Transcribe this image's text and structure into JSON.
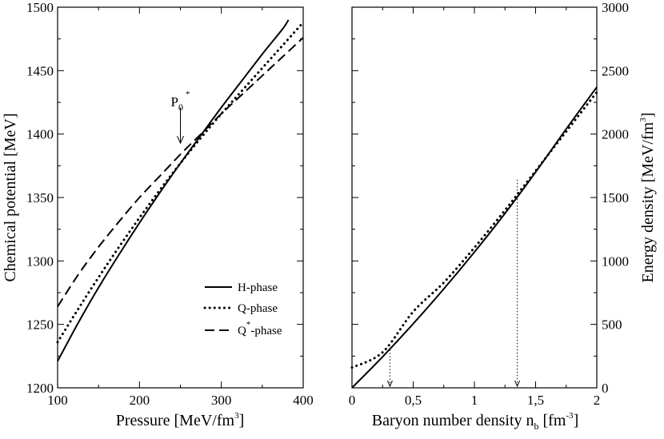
{
  "chart_data": [
    {
      "type": "line",
      "title": "",
      "xlabel_main": "Pressure [MeV/fm",
      "xlabel_sup": "3",
      "xlabel_end": "]",
      "ylabel": "Chemical potential [MeV]",
      "xlim": [
        100,
        400
      ],
      "ylim": [
        1200,
        1500
      ],
      "xticks": [
        100,
        200,
        300,
        400
      ],
      "yticks": [
        1200,
        1250,
        1300,
        1350,
        1400,
        1450,
        1500
      ],
      "xtick_labels": [
        "100",
        "200",
        "300",
        "400"
      ],
      "ytick_labels": [
        "1200",
        "1250",
        "1300",
        "1350",
        "1400",
        "1450",
        "1500"
      ],
      "legend_position": "bottom-right",
      "series": [
        {
          "name": "H-phase",
          "legend_label": "H-phase",
          "style": "solid",
          "points": [
            [
              100,
              1221
            ],
            [
              125,
              1251
            ],
            [
              150,
              1279
            ],
            [
              175,
              1305
            ],
            [
              200,
              1330
            ],
            [
              225,
              1354
            ],
            [
              250,
              1377
            ],
            [
              275,
              1399
            ],
            [
              300,
              1421
            ],
            [
              325,
              1442
            ],
            [
              350,
              1463
            ],
            [
              375,
              1483
            ],
            [
              382,
              1490
            ]
          ]
        },
        {
          "name": "Q-phase",
          "legend_label": "Q-phase",
          "style": "dotted",
          "points": [
            [
              100,
              1236
            ],
            [
              125,
              1262
            ],
            [
              150,
              1287
            ],
            [
              175,
              1311
            ],
            [
              200,
              1334
            ],
            [
              225,
              1356
            ],
            [
              250,
              1377
            ],
            [
              275,
              1397
            ],
            [
              300,
              1416
            ],
            [
              325,
              1434
            ],
            [
              350,
              1452
            ],
            [
              375,
              1470
            ],
            [
              400,
              1488
            ]
          ]
        },
        {
          "name": "Q*-phase",
          "legend_label_main": "Q",
          "legend_label_sup": "*",
          "legend_label_end": "-phase",
          "style": "dashed",
          "points": [
            [
              100,
              1264
            ],
            [
              125,
              1289
            ],
            [
              150,
              1311
            ],
            [
              175,
              1331
            ],
            [
              200,
              1350
            ],
            [
              225,
              1367
            ],
            [
              250,
              1384
            ],
            [
              275,
              1400
            ],
            [
              300,
              1416
            ],
            [
              325,
              1431
            ],
            [
              350,
              1446
            ],
            [
              375,
              1461
            ],
            [
              400,
              1476
            ]
          ]
        }
      ],
      "annotation": {
        "label_main": "P",
        "label_sub": "0",
        "label_sup": "*",
        "x": 250,
        "y": 1384,
        "arrow_from_y": 1402
      }
    },
    {
      "type": "line",
      "title": "",
      "xlabel_main": "Baryon number density n",
      "xlabel_sub": "b",
      "xlabel_mid": " [fm",
      "xlabel_sup": "-3",
      "xlabel_end": "]",
      "ylabel_main": "Energy density [MeV/fm",
      "ylabel_sup": "3",
      "ylabel_end": "]",
      "xlim": [
        0,
        2
      ],
      "ylim": [
        0,
        3000
      ],
      "xticks": [
        0,
        0.5,
        1,
        1.5,
        2
      ],
      "xtick_labels": [
        "0",
        "0,5",
        "1",
        "1,5",
        "2"
      ],
      "yticks": [
        0,
        500,
        1000,
        1500,
        2000,
        2500,
        3000
      ],
      "ytick_labels": [
        "0",
        "500",
        "1000",
        "1500",
        "2000",
        "2500",
        "3000"
      ],
      "series": [
        {
          "name": "H-phase",
          "style": "solid",
          "points": [
            [
              0,
              0
            ],
            [
              0.25,
              245
            ],
            [
              0.5,
              505
            ],
            [
              0.75,
              780
            ],
            [
              1.0,
              1070
            ],
            [
              1.25,
              1375
            ],
            [
              1.5,
              1700
            ],
            [
              1.75,
              2040
            ],
            [
              2.0,
              2370
            ]
          ]
        },
        {
          "name": "Q-phase",
          "style": "dotted",
          "points": [
            [
              0,
              160
            ],
            [
              0.25,
              280
            ],
            [
              0.5,
              600
            ],
            [
              0.75,
              830
            ],
            [
              1.0,
              1105
            ],
            [
              1.25,
              1400
            ],
            [
              1.5,
              1710
            ],
            [
              1.75,
              2020
            ],
            [
              2.0,
              2330
            ]
          ]
        }
      ],
      "markers": [
        {
          "x": 0.31,
          "y_top": 300,
          "style": "dotted-arrow"
        },
        {
          "x": 1.35,
          "y_top": 1640,
          "style": "dotted-arrow"
        }
      ]
    }
  ]
}
